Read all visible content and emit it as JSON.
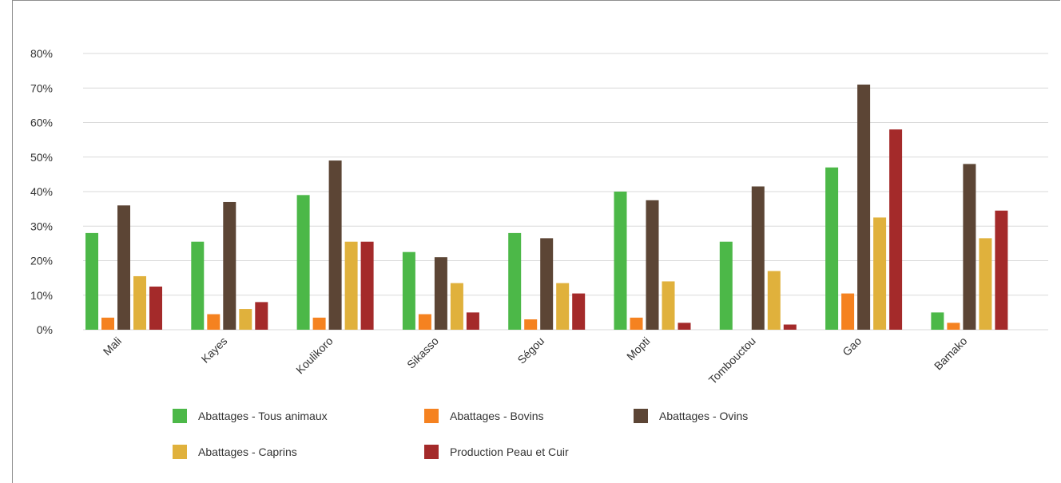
{
  "chart_data": {
    "type": "bar",
    "categories": [
      "Mali",
      "Kayes",
      "Koulikoro",
      "Sikasso",
      "Ségou",
      "Mopti",
      "Tombouctou",
      "Gao",
      "Bamako"
    ],
    "ylim": [
      0,
      80
    ],
    "yticks": [
      "0%",
      "10%",
      "20%",
      "30%",
      "40%",
      "50%",
      "60%",
      "70%",
      "80%"
    ],
    "grid": true,
    "legend_position": "bottom",
    "series": [
      {
        "name": "Abattages - Tous animaux",
        "color": "#4cb848",
        "values": [
          28,
          25.5,
          39,
          22.5,
          28,
          40,
          25.5,
          47,
          5
        ]
      },
      {
        "name": "Abattages - Bovins",
        "color": "#f58220",
        "values": [
          3.5,
          4.5,
          3.5,
          4.5,
          3,
          3.5,
          0,
          10.5,
          2
        ]
      },
      {
        "name": "Abattages - Ovins",
        "color": "#5c4535",
        "values": [
          36,
          37,
          49,
          21,
          26.5,
          37.5,
          41.5,
          71,
          48
        ]
      },
      {
        "name": "Abattages - Caprins",
        "color": "#e0b13c",
        "values": [
          15.5,
          6,
          25.5,
          13.5,
          13.5,
          14,
          17,
          32.5,
          26.5
        ]
      },
      {
        "name": "Production Peau et Cuir",
        "color": "#a42a2a",
        "values": [
          12.5,
          8,
          25.5,
          5,
          10.5,
          2,
          1.5,
          58,
          34.5
        ]
      }
    ]
  }
}
